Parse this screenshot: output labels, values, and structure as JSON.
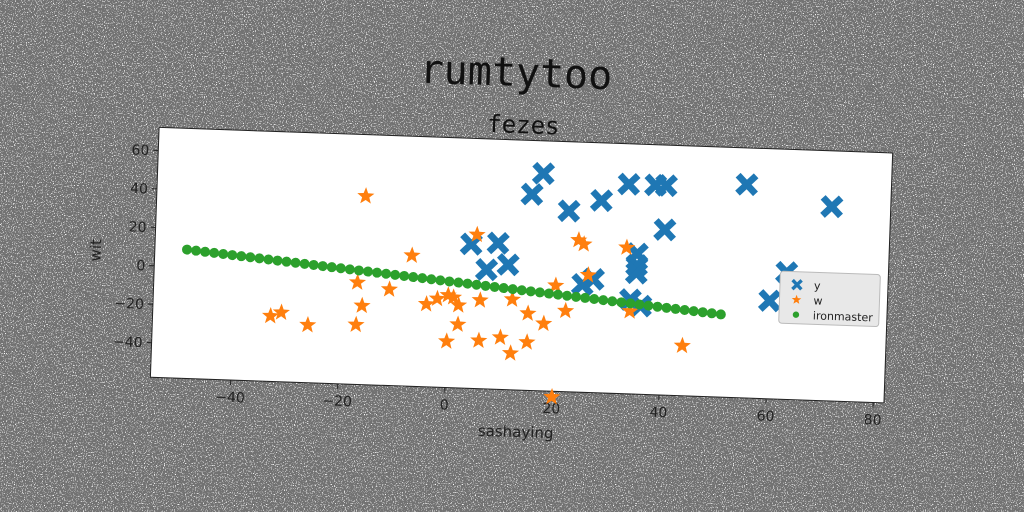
{
  "chart_data": {
    "type": "scatter",
    "title": "rumtytoo",
    "subtitle": "fezes",
    "xlabel": "sashaying",
    "ylabel": "wit",
    "xlim": [
      -55,
      82
    ],
    "ylim": [
      -58,
      72
    ],
    "xticks": [
      -40,
      -20,
      0,
      20,
      40,
      60,
      80
    ],
    "yticks": [
      -40,
      -20,
      0,
      20,
      40,
      60
    ],
    "xtick_labels": [
      "−40",
      "−20",
      "0",
      "20",
      "40",
      "60",
      "80"
    ],
    "ytick_labels": [
      "−40",
      "−20",
      "0",
      "20",
      "40",
      "60"
    ],
    "grid": false,
    "legend_position": "center-right",
    "series": [
      {
        "name": "y",
        "marker": "x",
        "color": "#1f77b4",
        "points": [
          [
            17,
            55
          ],
          [
            15,
            44
          ],
          [
            22,
            36
          ],
          [
            28,
            42
          ],
          [
            33,
            51
          ],
          [
            38,
            51
          ],
          [
            40,
            51
          ],
          [
            40,
            28
          ],
          [
            4,
            17
          ],
          [
            9,
            18
          ],
          [
            7,
            4
          ],
          [
            11,
            7
          ],
          [
            25,
            -2
          ],
          [
            27,
            1
          ],
          [
            35,
            15
          ],
          [
            35,
            9
          ],
          [
            35,
            5
          ],
          [
            34,
            -9
          ],
          [
            36,
            -12
          ],
          [
            55,
            53
          ],
          [
            71,
            43
          ],
          [
            60,
            -7
          ],
          [
            63,
            8
          ],
          [
            76,
            -11
          ],
          [
            78,
            -11
          ]
        ]
      },
      {
        "name": "w",
        "marker": "star",
        "color": "#ff7f0e",
        "points": [
          [
            -16,
            40
          ],
          [
            -7,
            10
          ],
          [
            5,
            22
          ],
          [
            24,
            21
          ],
          [
            25,
            19
          ],
          [
            33,
            18
          ],
          [
            -17,
            -5
          ],
          [
            -11,
            -8
          ],
          [
            -16,
            -17
          ],
          [
            -17,
            -27
          ],
          [
            -33,
            -24
          ],
          [
            -31,
            -22
          ],
          [
            -26,
            -28
          ],
          [
            -4,
            -15
          ],
          [
            -2,
            -12
          ],
          [
            0,
            -10
          ],
          [
            1,
            -11
          ],
          [
            2,
            -15
          ],
          [
            2,
            -25
          ],
          [
            0,
            -34
          ],
          [
            6,
            -12
          ],
          [
            12,
            -11
          ],
          [
            15,
            -18
          ],
          [
            18,
            -23
          ],
          [
            20,
            -3
          ],
          [
            22,
            -16
          ],
          [
            26,
            3
          ],
          [
            34,
            -15
          ],
          [
            44,
            -32
          ],
          [
            6,
            -33
          ],
          [
            10,
            -31
          ],
          [
            12,
            -39
          ],
          [
            15,
            -33
          ],
          [
            20,
            -61
          ]
        ]
      },
      {
        "name": "ironmaster",
        "marker": "circle",
        "color": "#2ca02c",
        "line": {
          "x0": -49,
          "y0": 9,
          "x1": 51,
          "y1": -15,
          "count": 60
        }
      }
    ]
  }
}
